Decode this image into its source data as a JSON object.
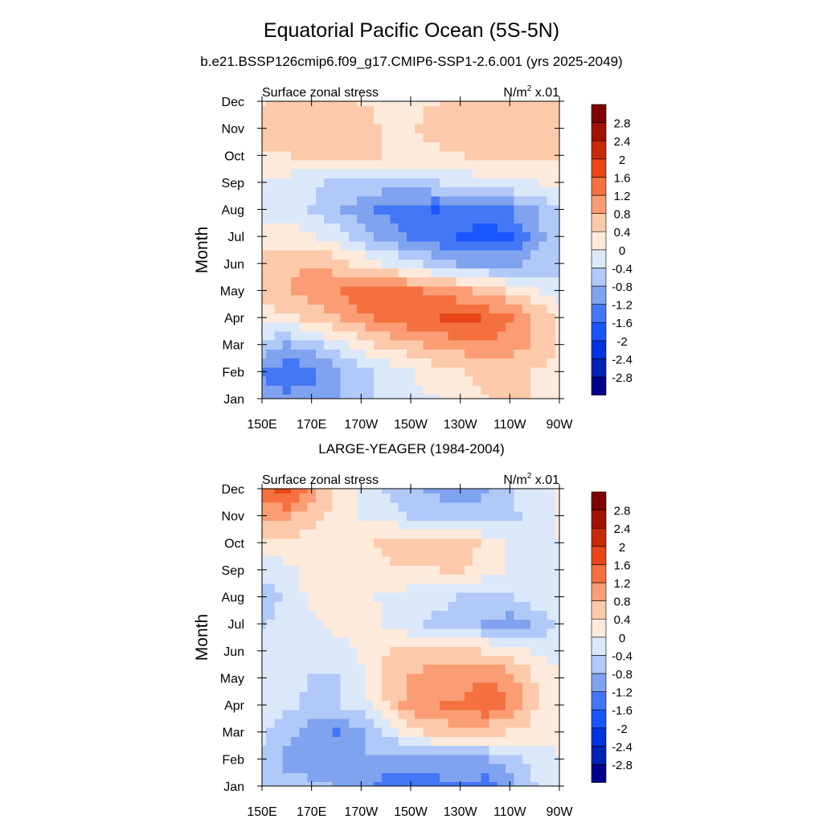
{
  "figure": {
    "title": "Equatorial Pacific Ocean (5S-5N)",
    "subtitle": "b.e21.BSSP126cmip6.f09_g17.CMIP6-SSP1-2.6.001 (yrs 2025-2049)",
    "panel2_title": "LARGE-YEAGER (1984-2004)"
  },
  "colorbar": {
    "colors": [
      "#00008b",
      "#0022b6",
      "#0033e0",
      "#1a56ff",
      "#4477f5",
      "#7fa3ef",
      "#b1c9f8",
      "#dbe8fa",
      "#feeadb",
      "#fccaaa",
      "#fa9d75",
      "#f4713f",
      "#e8451a",
      "#c82a05",
      "#a01300",
      "#7e0000"
    ],
    "labels": [
      "-2.8",
      "-2.4",
      "-2",
      "-1.6",
      "-1.2",
      "-0.8",
      "-0.4",
      "0",
      "0.4",
      "0.8",
      "1.2",
      "1.6",
      "2",
      "2.4",
      "2.8"
    ],
    "levels": [
      -2.8,
      -2.4,
      -2.0,
      -1.6,
      -1.2,
      -0.8,
      -0.4,
      0,
      0.4,
      0.8,
      1.2,
      1.6,
      2.0,
      2.4,
      2.8
    ]
  },
  "chart_data": [
    {
      "type": "heatmap",
      "title": "",
      "left_label": "Surface zonal stress",
      "units_label": "N/m",
      "units_sup": "2",
      "units_suffix": " x.01",
      "xlabel": "",
      "ylabel": "Month",
      "xticks": [
        "150E",
        "170E",
        "170W",
        "150W",
        "130W",
        "110W",
        "90W"
      ],
      "yticks": [
        "Jan",
        "Feb",
        "Mar",
        "Apr",
        "May",
        "Jun",
        "Jul",
        "Aug",
        "Sep",
        "Oct",
        "Nov",
        "Dec"
      ],
      "x": [
        150,
        160,
        170,
        180,
        190,
        200,
        210,
        220,
        230,
        240,
        250,
        260,
        270
      ],
      "values": [
        [
          -1.0,
          -1.1,
          -1.0,
          -0.8,
          -0.5,
          -0.3,
          -0.1,
          0.0,
          0.2,
          0.4,
          0.5,
          0.4,
          0.2
        ],
        [
          -1.2,
          -1.5,
          -1.3,
          -0.9,
          -0.6,
          -0.3,
          0.0,
          0.2,
          0.4,
          0.5,
          0.5,
          0.4,
          0.2
        ],
        [
          -0.6,
          -0.8,
          -0.6,
          -0.2,
          0.2,
          0.5,
          0.7,
          0.9,
          1.0,
          1.1,
          1.0,
          0.7,
          0.4
        ],
        [
          0.1,
          0.3,
          0.5,
          0.8,
          1.1,
          1.3,
          1.5,
          1.6,
          1.7,
          1.6,
          1.3,
          0.8,
          0.3
        ],
        [
          0.6,
          0.8,
          1.0,
          1.2,
          1.4,
          1.5,
          1.3,
          1.1,
          0.9,
          0.7,
          0.4,
          0.1,
          -0.2
        ],
        [
          0.6,
          0.7,
          0.8,
          0.6,
          0.3,
          0.0,
          -0.3,
          -0.6,
          -0.8,
          -0.9,
          -0.9,
          -0.7,
          -0.5
        ],
        [
          0.2,
          0.2,
          0.1,
          -0.2,
          -0.6,
          -0.9,
          -1.2,
          -1.4,
          -1.6,
          -1.8,
          -1.6,
          -1.0,
          -0.6
        ],
        [
          -0.2,
          -0.3,
          -0.4,
          -0.7,
          -1.0,
          -1.3,
          -1.5,
          -1.6,
          -1.5,
          -1.4,
          -1.2,
          -0.8,
          -0.4
        ],
        [
          -0.2,
          -0.2,
          -0.3,
          -0.5,
          -0.6,
          -0.6,
          -0.5,
          -0.4,
          -0.3,
          -0.2,
          -0.1,
          0.0,
          0.1
        ],
        [
          0.4,
          0.4,
          0.5,
          0.6,
          0.5,
          0.4,
          0.3,
          0.3,
          0.4,
          0.5,
          0.6,
          0.6,
          0.5
        ],
        [
          0.5,
          0.6,
          0.7,
          0.6,
          0.5,
          0.4,
          0.4,
          0.5,
          0.6,
          0.8,
          0.8,
          0.7,
          0.6
        ],
        [
          0.4,
          0.6,
          0.6,
          0.5,
          0.4,
          0.3,
          0.3,
          0.4,
          0.5,
          0.6,
          0.7,
          0.6,
          0.5
        ]
      ]
    },
    {
      "type": "heatmap",
      "title": "LARGE-YEAGER (1984-2004)",
      "left_label": "Surface zonal stress",
      "units_label": "N/m",
      "units_sup": "2",
      "units_suffix": " x.01",
      "xlabel": "",
      "ylabel": "Month",
      "xticks": [
        "150E",
        "170E",
        "170W",
        "150W",
        "130W",
        "110W",
        "90W"
      ],
      "yticks": [
        "Jan",
        "Feb",
        "Mar",
        "Apr",
        "May",
        "Jun",
        "Jul",
        "Aug",
        "Sep",
        "Oct",
        "Nov",
        "Dec"
      ],
      "x": [
        150,
        160,
        170,
        180,
        190,
        200,
        210,
        220,
        230,
        240,
        250,
        260,
        270
      ],
      "values": [
        [
          -0.4,
          -0.6,
          -0.7,
          -0.8,
          -1.0,
          -1.4,
          -1.5,
          -1.3,
          -1.2,
          -1.4,
          -1.0,
          -0.4,
          0.0
        ],
        [
          -0.5,
          -0.9,
          -1.0,
          -1.0,
          -0.8,
          -0.9,
          -1.0,
          -1.0,
          -0.9,
          -0.9,
          -0.6,
          -0.2,
          0.0
        ],
        [
          -0.3,
          -0.6,
          -1.1,
          -1.2,
          -0.9,
          -0.3,
          0.2,
          0.5,
          0.6,
          0.5,
          0.4,
          0.2,
          0.1
        ],
        [
          -0.2,
          -0.3,
          -0.5,
          -0.5,
          -0.2,
          0.4,
          1.0,
          1.2,
          1.3,
          1.6,
          1.2,
          0.5,
          0.2
        ],
        [
          -0.2,
          -0.2,
          -0.4,
          -0.4,
          -0.1,
          0.5,
          0.9,
          1.0,
          1.0,
          1.2,
          1.0,
          0.4,
          0.1
        ],
        [
          -0.2,
          -0.2,
          -0.3,
          -0.2,
          0.1,
          0.4,
          0.5,
          0.5,
          0.5,
          0.4,
          0.3,
          0.0,
          -0.2
        ],
        [
          -0.4,
          -0.3,
          -0.1,
          0.1,
          0.1,
          0.0,
          -0.3,
          -0.5,
          -0.6,
          -0.8,
          -1.0,
          -0.7,
          -0.3
        ],
        [
          -0.6,
          -0.3,
          0.1,
          0.3,
          0.2,
          -0.1,
          -0.2,
          -0.3,
          -0.4,
          -0.5,
          -0.4,
          -0.2,
          -0.1
        ],
        [
          -0.3,
          -0.1,
          0.2,
          0.3,
          0.3,
          0.3,
          0.4,
          0.4,
          0.5,
          0.2,
          0.0,
          -0.1,
          0.0
        ],
        [
          0.2,
          0.3,
          0.2,
          0.2,
          0.3,
          0.5,
          0.6,
          0.6,
          0.6,
          0.3,
          0.0,
          -0.1,
          0.0
        ],
        [
          1.0,
          0.9,
          0.6,
          0.2,
          0.0,
          -0.2,
          -0.4,
          -0.5,
          -0.6,
          -0.6,
          -0.5,
          -0.3,
          0.1
        ],
        [
          1.4,
          1.8,
          1.0,
          0.3,
          -0.1,
          -0.4,
          -0.7,
          -0.9,
          -1.1,
          -0.8,
          -0.4,
          -0.2,
          0.1
        ]
      ]
    }
  ]
}
